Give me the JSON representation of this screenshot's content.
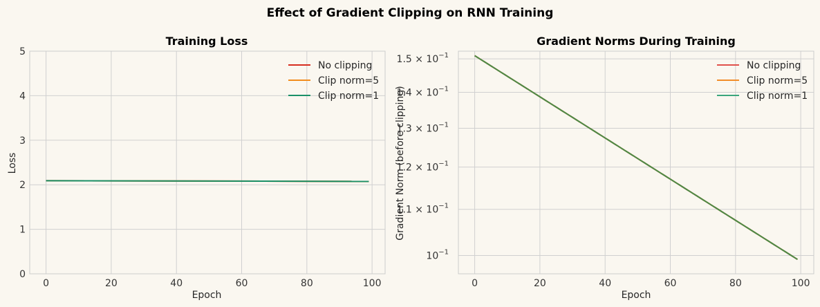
{
  "suptitle": "Effect of Gradient Clipping on RNN Training",
  "chart_data": [
    {
      "type": "line",
      "title": "Training Loss",
      "xlabel": "Epoch",
      "ylabel": "Loss",
      "xlim": [
        -5,
        104
      ],
      "ylim": [
        0,
        5
      ],
      "xticks": [
        0,
        20,
        40,
        60,
        80,
        100
      ],
      "yticks": [
        0,
        1,
        2,
        3,
        4,
        5
      ],
      "grid": true,
      "legend_position": "top-right",
      "series": [
        {
          "name": "No clipping",
          "color": "#d62d1f",
          "x": [
            0,
            99
          ],
          "y": [
            2.09,
            2.075
          ]
        },
        {
          "name": "Clip norm=5",
          "color": "#f28c1c",
          "x": [
            0,
            99
          ],
          "y": [
            2.09,
            2.075
          ]
        },
        {
          "name": "Clip norm=1",
          "color": "#1a9068",
          "x": [
            0,
            99
          ],
          "y": [
            2.09,
            2.075
          ]
        }
      ]
    },
    {
      "type": "line",
      "title": "Gradient Norms During Training",
      "xlabel": "Epoch",
      "ylabel": "Gradient Norm (before clipping)",
      "yscale": "log",
      "xlim": [
        -5,
        104
      ],
      "ylim": [
        0.0963,
        0.1524
      ],
      "xticks": [
        0,
        20,
        40,
        60,
        80,
        100
      ],
      "yticks": [
        {
          "value": 0.1,
          "label": "10",
          "exp": "−1"
        },
        {
          "value": 0.11,
          "label": "1.1 × 10",
          "exp": "−1"
        },
        {
          "value": 0.12,
          "label": "1.2 × 10",
          "exp": "−1"
        },
        {
          "value": 0.13,
          "label": "1.3 × 10",
          "exp": "−1"
        },
        {
          "value": 0.14,
          "label": "1.4 × 10",
          "exp": "−1"
        },
        {
          "value": 0.15,
          "label": "1.5 × 10",
          "exp": "−1"
        }
      ],
      "grid": true,
      "legend_position": "top-right",
      "series": [
        {
          "name": "No clipping",
          "color": "#e0504a",
          "decay": [
            0.151,
            0.0992
          ]
        },
        {
          "name": "Clip norm=5",
          "color": "#f28c28",
          "decay": [
            0.151,
            0.0992
          ]
        },
        {
          "name": "Clip norm=1",
          "color": "#3aa57c",
          "decay": [
            0.151,
            0.0992
          ]
        }
      ],
      "visible_line_color": "#4a8a48"
    }
  ]
}
